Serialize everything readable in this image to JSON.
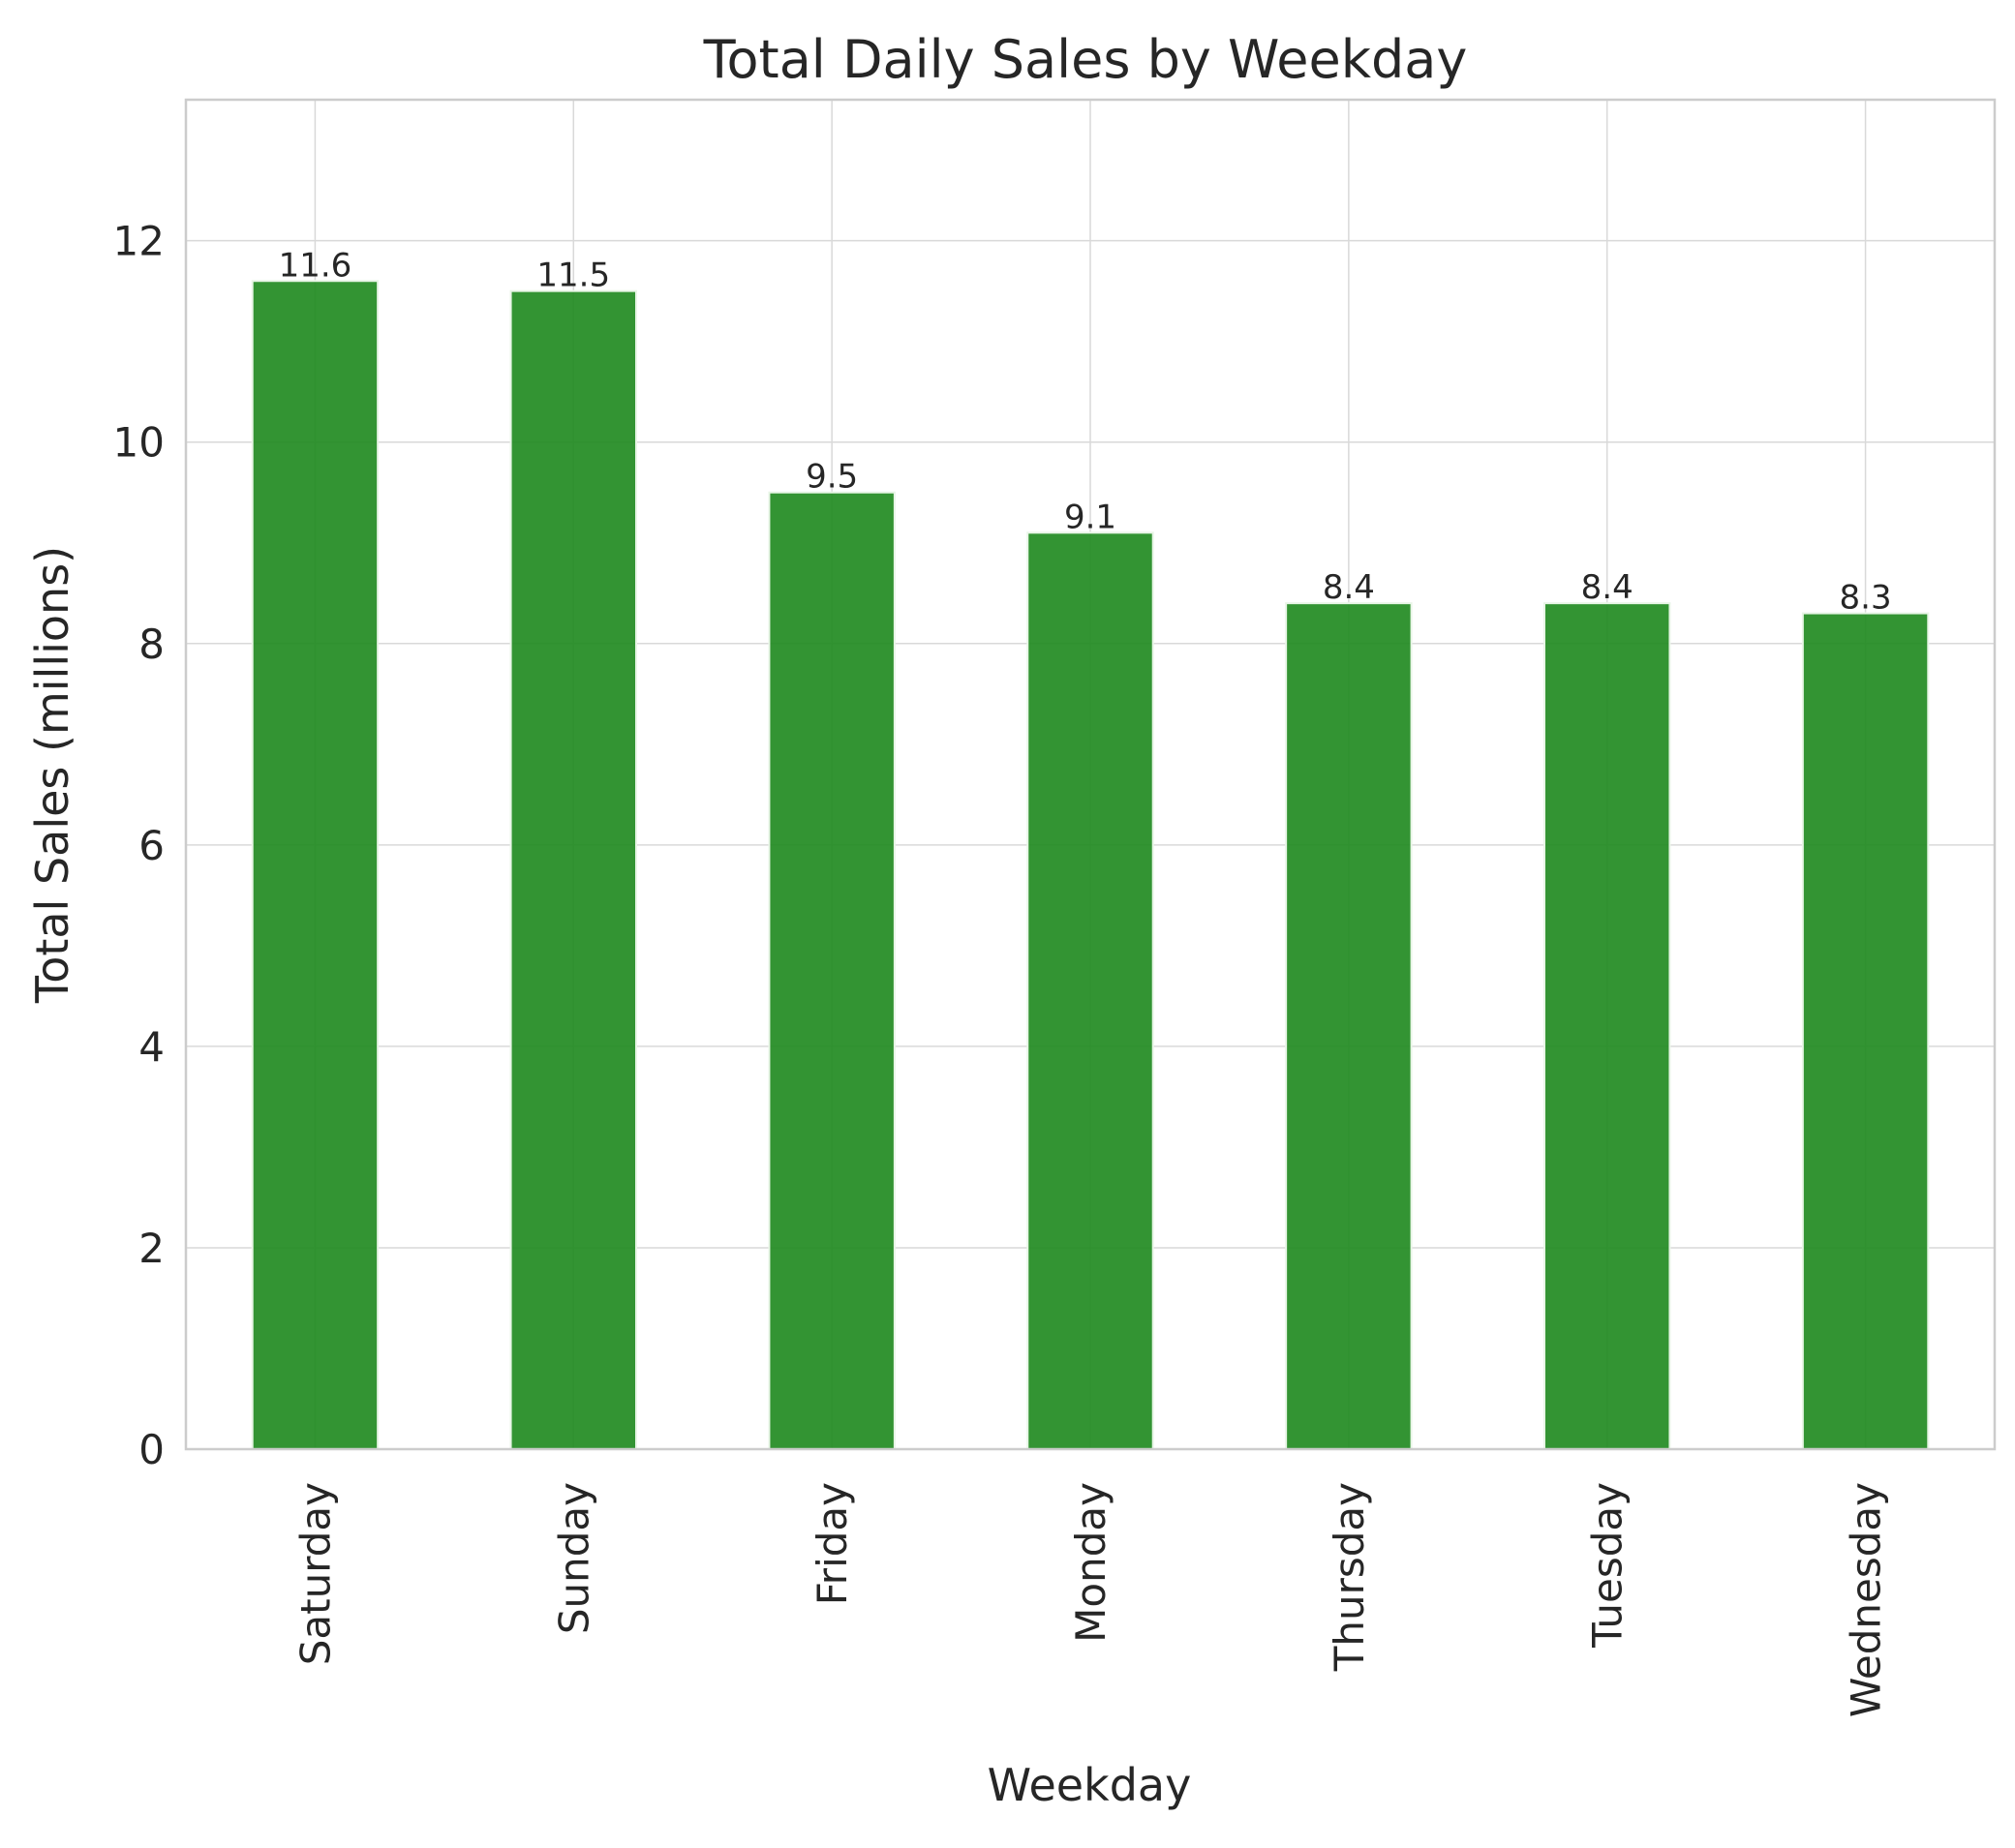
{
  "chart_data": {
    "type": "bar",
    "title": "Total Daily Sales by Weekday",
    "xlabel": "Weekday",
    "ylabel": "Total Sales (millions)",
    "categories": [
      "Saturday",
      "Sunday",
      "Friday",
      "Monday",
      "Thursday",
      "Tuesday",
      "Wednesday"
    ],
    "values": [
      11.6,
      11.5,
      9.5,
      9.1,
      8.4,
      8.4,
      8.3
    ],
    "value_labels": [
      "11.6",
      "11.5",
      "9.5",
      "9.1",
      "8.4",
      "8.4",
      "8.3"
    ],
    "ylim": [
      0,
      13.4
    ],
    "yticks": [
      0,
      2,
      4,
      6,
      8,
      10,
      12
    ],
    "grid": true,
    "legend": "none",
    "bar_color": "#228B22"
  }
}
